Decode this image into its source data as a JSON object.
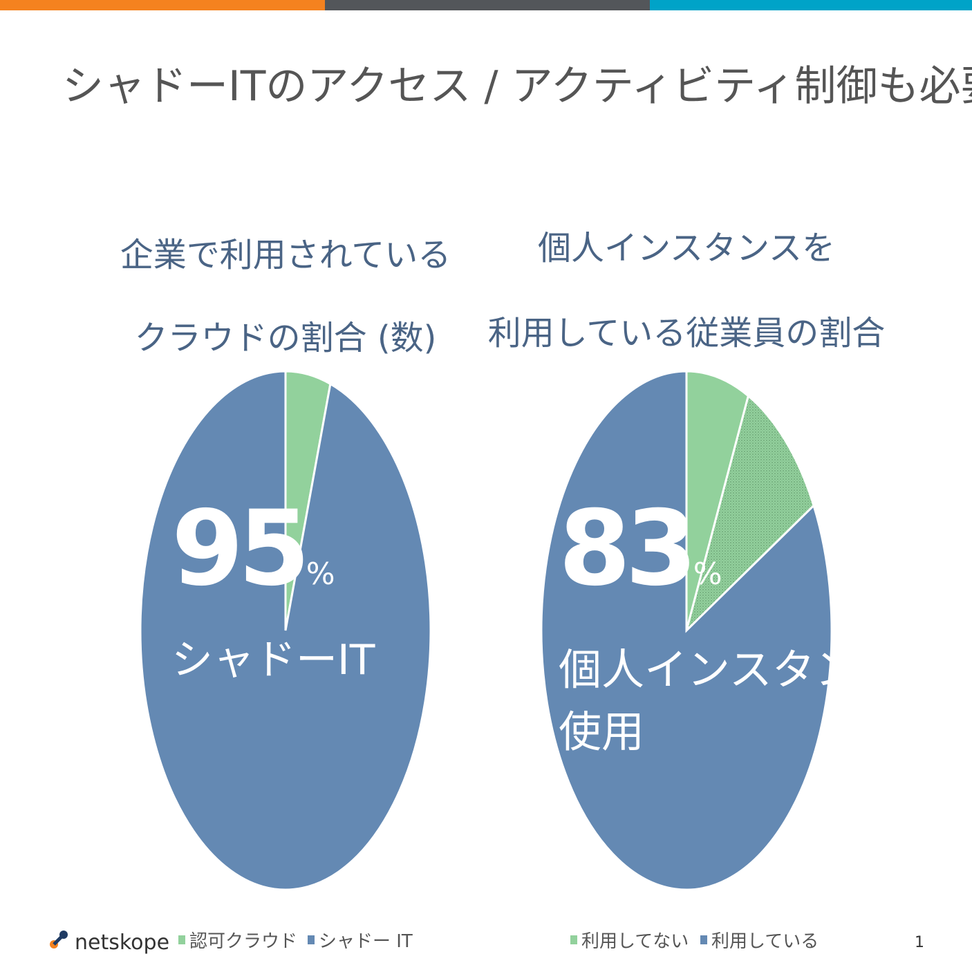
{
  "title": "シャドーITのアクセス / アクティビティ制御も必要",
  "logo": "netskope",
  "page_number": "1",
  "chart_data": [
    {
      "type": "pie",
      "title_lines": [
        "企業で利用されている",
        "クラウドの割合 (数)"
      ],
      "categories": [
        "認可クラウド",
        "シャドー IT"
      ],
      "values": [
        5,
        95
      ],
      "colors": [
        "#92d19c",
        "#6489b3"
      ],
      "patterns": [
        null,
        null
      ],
      "big_label": {
        "number": "95",
        "unit": "%",
        "caption": [
          "シャドーIT"
        ]
      }
    },
    {
      "type": "pie",
      "title_lines": [
        "個人インスタンスを",
        "利用している従業員の割合"
      ],
      "categories": [
        "利用してない",
        null,
        "利用している"
      ],
      "values": [
        7,
        10,
        83
      ],
      "colors": [
        "#92d19c",
        "#92d19c",
        "#6489b3"
      ],
      "patterns": [
        null,
        "dots",
        null
      ],
      "big_label": {
        "number": "83",
        "unit": "%",
        "caption": [
          "個人インスタンス",
          "使用"
        ]
      }
    }
  ]
}
